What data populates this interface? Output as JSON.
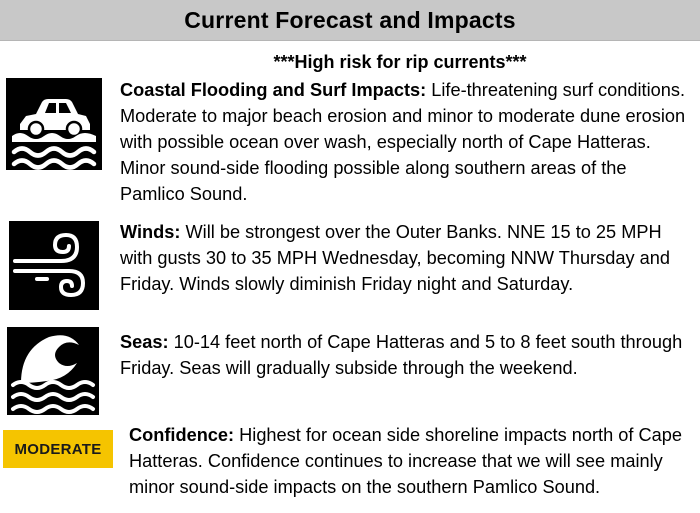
{
  "header": {
    "title": "Current Forecast and Impacts"
  },
  "alert": {
    "text": "***High risk for rip currents***"
  },
  "sections": [
    {
      "icon": "car-in-water-icon",
      "heading": "Coastal Flooding and Surf Impacts:",
      "body": " Life-threatening surf conditions. Moderate to major beach erosion and minor to moderate dune erosion with possible ocean over wash, especially north of Cape Hatteras.  Minor sound-side flooding possible along southern areas of the Pamlico Sound."
    },
    {
      "icon": "wind-icon",
      "heading": "Winds:",
      "body": " Will be strongest over the Outer Banks.  NNE 15 to 25 MPH with gusts 30 to 35 MPH Wednesday, becoming NNW Thursday and Friday.  Winds slowly diminish Friday night and Saturday."
    },
    {
      "icon": "waves-icon",
      "heading": "Seas:",
      "body": " 10-14 feet north of Cape Hatteras and 5 to 8 feet south through Friday.  Seas will gradually subside through the weekend."
    },
    {
      "badge": "MODERATE",
      "heading": "Confidence:",
      "body": " Highest for ocean side shoreline impacts north of Cape Hatteras. Confidence continues to increase that we will see mainly minor sound-side impacts on the southern Pamlico Sound."
    }
  ],
  "colors": {
    "title_bar": "#c8c8c8",
    "badge": "#f5c400",
    "icon_bg": "#000000"
  }
}
